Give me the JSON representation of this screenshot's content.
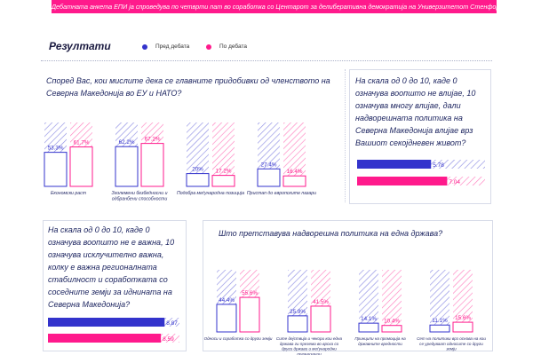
{
  "banner": "Дебатната анкета ЕПИ ја спроведува по четврти пат во соработка со Центарот за делиберативна демократија на Универзитетот Стенфорд од САД.",
  "results_title": "Резултати",
  "legend": {
    "before": "Пред дебата",
    "after": "По дебата"
  },
  "colors": {
    "before": "#3333cc",
    "after": "#ff1a8c",
    "banner": "#ff1a8c"
  },
  "q1": {
    "text": "Според Вас, кои мислите дека се главните придобивки од членството на Северна Македонија во ЕУ и НАТО?"
  },
  "q2": {
    "text": "На скала од 0 до 10, каде 0 означува воопшто не влијае, 10 означува многу влијае, дали надворешната политика на Северна Македонија влијае врз Вашиот секојдневен живот?"
  },
  "q3": {
    "text": "На скала од 0 до 10, каде 0 означува воопшто не е важна, 10 означува исклучително важна, колку е важна регионалната стабилност и соработката со соседните земји за иднината на Северна Македонија?"
  },
  "q4": {
    "text": "Што претставува надворешна политика на една држава?"
  },
  "chart_data": [
    {
      "type": "bar",
      "categories": [
        "Економски раст",
        "Зголемени безбедносни и одбранбени способности",
        "Подобра меѓународна позиција",
        "Пристап до европските пазари"
      ],
      "series": [
        {
          "name": "Пред дебата",
          "values": [
            53.3,
            62.2,
            20,
            27.4
          ],
          "labels": [
            "53.3%",
            "62.2%",
            "20%",
            "27.4%"
          ]
        },
        {
          "name": "По дебата",
          "values": [
            61.7,
            67.2,
            17.2,
            16.4
          ],
          "labels": [
            "61.7%",
            "67.2%",
            "17.2%",
            "16.4%"
          ]
        }
      ],
      "ylim": [
        0,
        100
      ]
    },
    {
      "type": "bar",
      "orientation": "horizontal",
      "series": [
        {
          "name": "Пред дебата",
          "values": [
            5.78
          ],
          "labels": [
            "5.78"
          ]
        },
        {
          "name": "По дебата",
          "values": [
            7.04
          ],
          "labels": [
            "7.04"
          ]
        }
      ],
      "xlim": [
        0,
        10
      ]
    },
    {
      "type": "bar",
      "orientation": "horizontal",
      "series": [
        {
          "name": "Пред дебата",
          "values": [
            8.87
          ],
          "labels": [
            "8.87"
          ]
        },
        {
          "name": "По дебата",
          "values": [
            8.59
          ],
          "labels": [
            "8.59"
          ]
        }
      ],
      "xlim": [
        0,
        10
      ]
    },
    {
      "type": "bar",
      "categories": [
        "Односи и соработка со други земји",
        "Сите дејствија и чекори кои една држава ги презема во врска со други држави и меѓународни организации",
        "Принципи на промоција на државните вредности",
        "Сет на политики врз основа на кои се уредуваат односите со други земји"
      ],
      "series": [
        {
          "name": "Пред дебата",
          "values": [
            44.4,
            25.9,
            14.1,
            11.1
          ],
          "labels": [
            "44.4%",
            "25.9%",
            "14.1%",
            "11.1%"
          ]
        },
        {
          "name": "По дебата",
          "values": [
            55.6,
            41.5,
            10.4,
            15.6
          ],
          "labels": [
            "55.6%",
            "41.5%",
            "10.4%",
            "15.6%"
          ]
        }
      ],
      "ylim": [
        0,
        100
      ]
    }
  ]
}
